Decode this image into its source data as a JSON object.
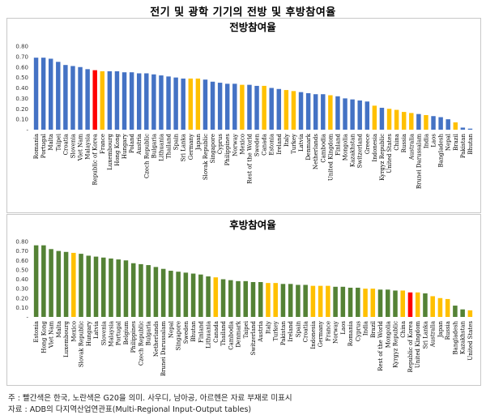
{
  "title": "전기 및 광학 기기의 전방 및 후방참여율",
  "legend_colors": {
    "default": "#4472c4",
    "korea": "#ff0000",
    "g20": "#ffc000",
    "default_backward": "#548235"
  },
  "note": "주 : 빨간색은 한국, 노란색은 G20을 의미. 사우디, 남아공, 아르헨은 자료 부재로 미표시",
  "source": "자료 : ADB의 다지역산업연관표(Multi-Regional Input-Output tables)",
  "chart_data": [
    {
      "type": "bar",
      "title": "전방참여율",
      "ylim": [
        0,
        0.8
      ],
      "yticks": [
        "-",
        "0.10",
        "0.20",
        "0.30",
        "0.40",
        "0.50",
        "0.60",
        "0.70",
        "0.80"
      ],
      "grid": false,
      "default_color": "#4472c4",
      "categories": [
        "Romania",
        "Portugal",
        "Malta",
        "Taipei",
        "Croatia",
        "Slovenia",
        "Viet Nam",
        "Malaysia",
        "Republic of Korea",
        "France",
        "Luxembourg",
        "Hong Kong",
        "Hungary",
        "Poland",
        "Austria",
        "Czech Republic",
        "Bulgaria",
        "Lithuania",
        "Thailand",
        "Spain",
        "Sri Lanka",
        "Germany",
        "Japan",
        "Slovak Republic",
        "Singapore",
        "Cyprus",
        "Philippines",
        "Norway",
        "Mexico",
        "Rest of the World",
        "Sweden",
        "Canada",
        "Estonia",
        "Ireland",
        "Italy",
        "Turkey",
        "Latvia",
        "Denmark",
        "Netherlands",
        "Cambodia",
        "United Kingdom",
        "Finland",
        "Mongolia",
        "Kazakhstan",
        "Switzerland",
        "Greece",
        "Indonesia",
        "Kyrgyz Republic",
        "United States",
        "China",
        "Russia",
        "Australia",
        "Brunei Darussalam",
        "India",
        "Laos",
        "Bangladesh",
        "Nepal",
        "Brazil",
        "Pakistan",
        "Bhutan"
      ],
      "values": [
        0.69,
        0.69,
        0.68,
        0.65,
        0.62,
        0.61,
        0.6,
        0.58,
        0.57,
        0.56,
        0.56,
        0.56,
        0.55,
        0.55,
        0.54,
        0.54,
        0.53,
        0.52,
        0.51,
        0.5,
        0.49,
        0.49,
        0.49,
        0.48,
        0.46,
        0.45,
        0.44,
        0.44,
        0.43,
        0.43,
        0.42,
        0.42,
        0.4,
        0.39,
        0.38,
        0.37,
        0.36,
        0.35,
        0.34,
        0.34,
        0.33,
        0.32,
        0.3,
        0.29,
        0.28,
        0.27,
        0.23,
        0.21,
        0.2,
        0.19,
        0.17,
        0.16,
        0.15,
        0.14,
        0.13,
        0.12,
        0.1,
        0.07,
        0.02,
        0.01
      ],
      "colors": {
        "Republic of Korea": "#ff0000",
        "France": "#ffc000",
        "Germany": "#ffc000",
        "Japan": "#ffc000",
        "Mexico": "#ffc000",
        "Canada": "#ffc000",
        "Italy": "#ffc000",
        "Turkey": "#ffc000",
        "United Kingdom": "#ffc000",
        "Indonesia": "#ffc000",
        "United States": "#ffc000",
        "China": "#ffc000",
        "Russia": "#ffc000",
        "Australia": "#ffc000",
        "India": "#ffc000",
        "Brazil": "#ffc000"
      }
    },
    {
      "type": "bar",
      "title": "후방참여율",
      "ylim": [
        0,
        0.8
      ],
      "yticks": [
        "-",
        "0.10",
        "0.20",
        "0.30",
        "0.40",
        "0.50",
        "0.60",
        "0.70",
        "0.80"
      ],
      "grid": false,
      "default_color": "#548235",
      "categories": [
        "Estonia",
        "Hong Kong",
        "Viet Nam",
        "Malta",
        "Luxembourg",
        "Mexico",
        "Slovak Republic",
        "Hungary",
        "Latvia",
        "Slovenia",
        "Malaysia",
        "Portugal",
        "Belgium",
        "Philippines",
        "Czech Republic",
        "Bulgaria",
        "Netherlands",
        "Brunei Darussalam",
        "Nepal",
        "Singapore",
        "Sweden",
        "Bhutan",
        "Finland",
        "Lithuania",
        "Canada",
        "Thailand",
        "Cambodia",
        "Denmark",
        "Taipei",
        "Switzerland",
        "Austria",
        "Italy",
        "Turkey",
        "Pakistan",
        "Ireland",
        "Spain",
        "Croatia",
        "Indonesia",
        "Germany",
        "France",
        "Norway",
        "Laos",
        "Romania",
        "Cyprus",
        "India",
        "Brazil",
        "Rest of the World",
        "Mongolia",
        "Kyrgyz Republic",
        "China",
        "Republic of Korea",
        "United Kingdom",
        "Sri Lanka",
        "Australia",
        "Japan",
        "Russia",
        "Bangladesh",
        "Kazakhstan",
        "United States"
      ],
      "values": [
        0.76,
        0.76,
        0.72,
        0.7,
        0.69,
        0.68,
        0.67,
        0.65,
        0.64,
        0.63,
        0.62,
        0.61,
        0.6,
        0.57,
        0.56,
        0.55,
        0.53,
        0.51,
        0.49,
        0.48,
        0.47,
        0.46,
        0.45,
        0.43,
        0.42,
        0.4,
        0.39,
        0.38,
        0.38,
        0.37,
        0.37,
        0.36,
        0.36,
        0.35,
        0.35,
        0.34,
        0.34,
        0.33,
        0.33,
        0.33,
        0.32,
        0.32,
        0.31,
        0.31,
        0.3,
        0.3,
        0.29,
        0.29,
        0.28,
        0.28,
        0.26,
        0.26,
        0.25,
        0.22,
        0.2,
        0.19,
        0.12,
        0.08,
        0.07
      ],
      "colors": {
        "Mexico": "#ffc000",
        "Canada": "#ffc000",
        "Italy": "#ffc000",
        "Turkey": "#ffc000",
        "Indonesia": "#ffc000",
        "Germany": "#ffc000",
        "France": "#ffc000",
        "India": "#ffc000",
        "Brazil": "#ffc000",
        "China": "#ffc000",
        "Republic of Korea": "#ff0000",
        "United Kingdom": "#ffc000",
        "Australia": "#ffc000",
        "Japan": "#ffc000",
        "Russia": "#ffc000",
        "United States": "#ffc000"
      }
    }
  ]
}
